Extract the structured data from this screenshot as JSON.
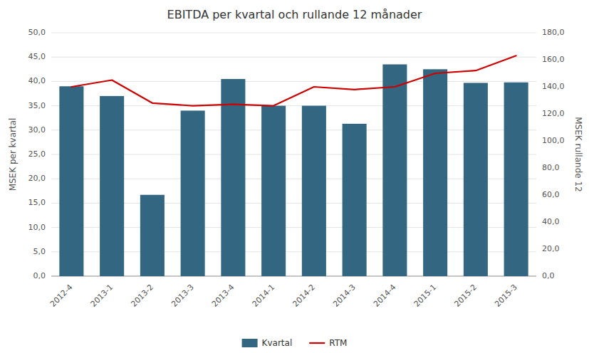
{
  "chart_data": {
    "type": "bar",
    "title": "EBITDA per kvartal och rullande 12 månader",
    "categories": [
      "2012-4",
      "2013-1",
      "2013-2",
      "2013-3",
      "2013-4",
      "2014-1",
      "2014-2",
      "2014-3",
      "2014-4",
      "2015-1",
      "2015-2",
      "2015-3"
    ],
    "series": [
      {
        "name": "Kvartal",
        "type": "bar",
        "color": "#336680",
        "values": [
          39.0,
          37.0,
          16.7,
          34.0,
          40.5,
          35.0,
          35.0,
          31.3,
          43.5,
          42.5,
          39.7,
          39.8
        ]
      },
      {
        "name": "RTM",
        "type": "line",
        "color": "#cc0000",
        "axis": "y2",
        "values": [
          140.0,
          145.0,
          128.0,
          126.0,
          127.0,
          126.0,
          140.0,
          138.0,
          140.0,
          150.0,
          152.0,
          163.0
        ]
      }
    ],
    "ylabel": "MSEK per kvartal",
    "y2label": "MSEK rullande 12",
    "ylim": [
      0,
      50
    ],
    "yticks": [
      {
        "value": 0.0,
        "label": "0,0"
      },
      {
        "value": 5.0,
        "label": "5,0"
      },
      {
        "value": 10.0,
        "label": "10,0"
      },
      {
        "value": 15.0,
        "label": "15,0"
      },
      {
        "value": 20.0,
        "label": "20,0"
      },
      {
        "value": 25.0,
        "label": "25,0"
      },
      {
        "value": 30.0,
        "label": "30,0"
      },
      {
        "value": 35.0,
        "label": "35,0"
      },
      {
        "value": 40.0,
        "label": "40,0"
      },
      {
        "value": 45.0,
        "label": "45,0"
      },
      {
        "value": 50.0,
        "label": "50,0"
      }
    ],
    "y2lim": [
      0,
      180
    ],
    "y2ticks": [
      {
        "value": 0.0,
        "label": "0,0"
      },
      {
        "value": 20.0,
        "label": "20,0"
      },
      {
        "value": 40.0,
        "label": "40,0"
      },
      {
        "value": 60.0,
        "label": "60,0"
      },
      {
        "value": 80.0,
        "label": "80,0"
      },
      {
        "value": 100.0,
        "label": "100,0"
      },
      {
        "value": 120.0,
        "label": "120,0"
      },
      {
        "value": 140.0,
        "label": "140,0"
      },
      {
        "value": 160.0,
        "label": "160,0"
      },
      {
        "value": 180.0,
        "label": "180,0"
      }
    ],
    "grid": true,
    "legend": "bottom"
  }
}
